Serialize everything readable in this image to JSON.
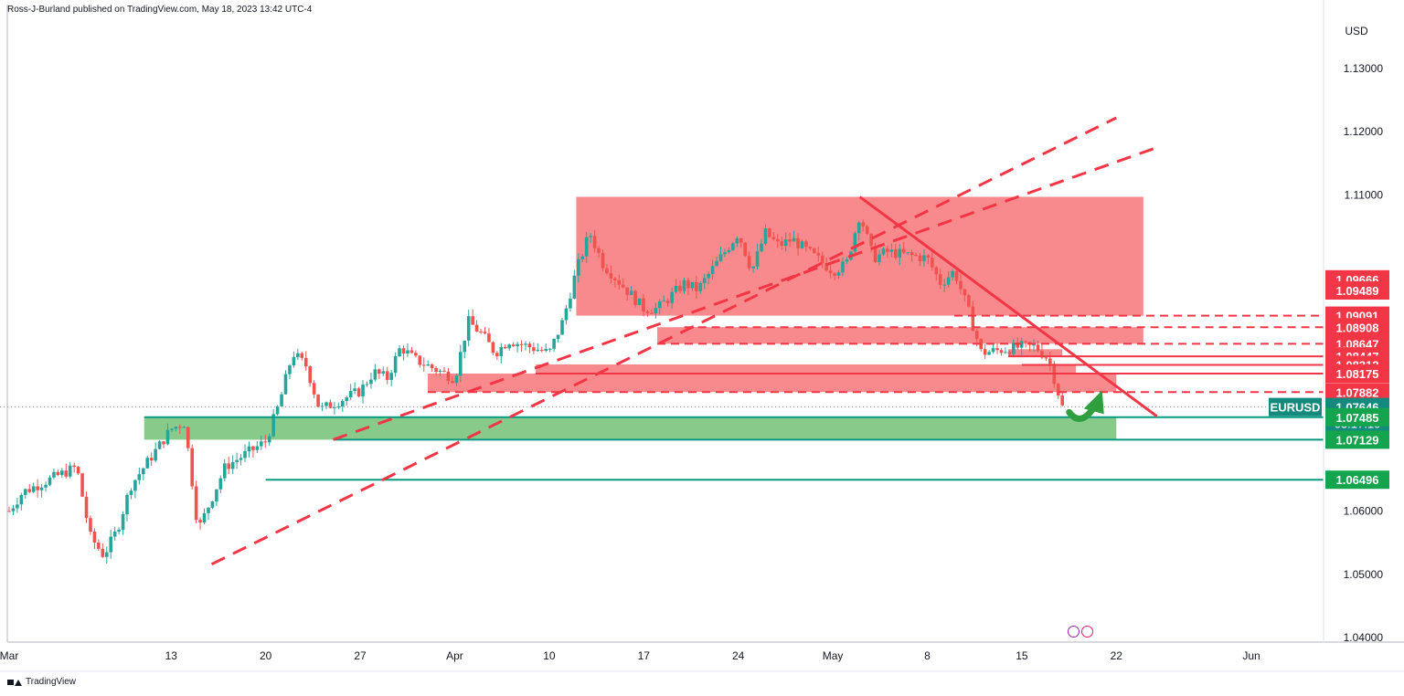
{
  "header": {
    "attribution": "Ross-J-Burland published on TradingView.com, May 18, 2023 13:42 UTC-4"
  },
  "footer": {
    "brand": "TradingView"
  },
  "colors": {
    "bull": "#26a69a",
    "bear": "#ef5350",
    "zone_red": "#f77c80",
    "zone_green": "#81c784",
    "line_red": "#f23645",
    "line_green": "#089981",
    "label_red": "#f23645",
    "label_green": "#14a44d",
    "label_current": "#138a7d"
  },
  "chart_data": {
    "type": "candlestick",
    "symbol": "EURUSD",
    "currency_label": "USD",
    "ylim": [
      1.04,
      1.1375
    ],
    "y_ticks": [
      "1.13000",
      "1.12000",
      "1.11000",
      "1.06000",
      "1.05000",
      "1.04000"
    ],
    "x_ticks": [
      {
        "label": "Mar",
        "date": "2023-03-01"
      },
      {
        "label": "13",
        "date": "2023-03-13"
      },
      {
        "label": "20",
        "date": "2023-03-20"
      },
      {
        "label": "27",
        "date": "2023-03-27"
      },
      {
        "label": "Apr",
        "date": "2023-04-03"
      },
      {
        "label": "10",
        "date": "2023-04-10"
      },
      {
        "label": "17",
        "date": "2023-04-17"
      },
      {
        "label": "24",
        "date": "2023-04-24"
      },
      {
        "label": "May",
        "date": "2023-05-01"
      },
      {
        "label": "8",
        "date": "2023-05-08"
      },
      {
        "label": "15",
        "date": "2023-05-15"
      },
      {
        "label": "22",
        "date": "2023-05-22"
      },
      {
        "label": "Jun",
        "date": "2023-06-01"
      }
    ],
    "price_path": [
      [
        "2023-03-01",
        1.06
      ],
      [
        "2023-03-02",
        1.063
      ],
      [
        "2023-03-03",
        1.064
      ],
      [
        "2023-03-06",
        1.067
      ],
      [
        "2023-03-07",
        1.056
      ],
      [
        "2023-03-08",
        1.053
      ],
      [
        "2023-03-09",
        1.057
      ],
      [
        "2023-03-10",
        1.064
      ],
      [
        "2023-03-13",
        1.073
      ],
      [
        "2023-03-14",
        1.074
      ],
      [
        "2023-03-15",
        1.057
      ],
      [
        "2023-03-16",
        1.062
      ],
      [
        "2023-03-17",
        1.067
      ],
      [
        "2023-03-20",
        1.071
      ],
      [
        "2023-03-21",
        1.077
      ],
      [
        "2023-03-22",
        1.085
      ],
      [
        "2023-03-23",
        1.083
      ],
      [
        "2023-03-24",
        1.076
      ],
      [
        "2023-03-27",
        1.079
      ],
      [
        "2023-03-28",
        1.082
      ],
      [
        "2023-03-29",
        1.081
      ],
      [
        "2023-03-30",
        1.086
      ],
      [
        "2023-03-31",
        1.084
      ],
      [
        "2023-04-03",
        1.081
      ],
      [
        "2023-04-04",
        1.09
      ],
      [
        "2023-04-05",
        1.088
      ],
      [
        "2023-04-06",
        1.085
      ],
      [
        "2023-04-07",
        1.087
      ],
      [
        "2023-04-10",
        1.085
      ],
      [
        "2023-04-11",
        1.09
      ],
      [
        "2023-04-12",
        1.098
      ],
      [
        "2023-04-13",
        1.104
      ],
      [
        "2023-04-14",
        1.099
      ],
      [
        "2023-04-17",
        1.092
      ],
      [
        "2023-04-18",
        1.092
      ],
      [
        "2023-04-19",
        1.094
      ],
      [
        "2023-04-20",
        1.096
      ],
      [
        "2023-04-21",
        1.095
      ],
      [
        "2023-04-24",
        1.104
      ],
      [
        "2023-04-25",
        1.098
      ],
      [
        "2023-04-26",
        1.104
      ],
      [
        "2023-04-27",
        1.102
      ],
      [
        "2023-04-28",
        1.103
      ],
      [
        "2023-05-01",
        1.098
      ],
      [
        "2023-05-02",
        1.099
      ],
      [
        "2023-05-03",
        1.107
      ],
      [
        "2023-05-04",
        1.1
      ],
      [
        "2023-05-05",
        1.101
      ],
      [
        "2023-05-08",
        1.1
      ],
      [
        "2023-05-09",
        1.096
      ],
      [
        "2023-05-10",
        1.098
      ],
      [
        "2023-05-11",
        1.092
      ],
      [
        "2023-05-12",
        1.085
      ],
      [
        "2023-05-15",
        1.086
      ],
      [
        "2023-05-16",
        1.086
      ],
      [
        "2023-05-17",
        1.084
      ],
      [
        "2023-05-18",
        1.07646
      ]
    ],
    "zones": [
      {
        "color": "red",
        "from": "2023-04-12",
        "to": "2023-05-24",
        "low": 1.09091,
        "high": 1.1097
      },
      {
        "color": "red",
        "from": "2023-04-18",
        "to": "2023-05-24",
        "low": 1.08647,
        "high": 1.08908
      },
      {
        "color": "red",
        "from": "2023-05-14",
        "to": "2023-05-18",
        "low": 1.08447,
        "high": 1.0856
      },
      {
        "color": "red",
        "from": "2023-04-09",
        "to": "2023-05-19",
        "low": 1.08175,
        "high": 1.0832
      },
      {
        "color": "red",
        "from": "2023-04-01",
        "to": "2023-05-22",
        "low": 1.07882,
        "high": 1.08175
      },
      {
        "color": "green",
        "from": "2023-03-11",
        "to": "2023-05-22",
        "low": 1.07129,
        "high": 1.07485
      }
    ],
    "levels": [
      {
        "price": 1.09666,
        "label": "1.09666",
        "style": "label",
        "color": "red"
      },
      {
        "price": 1.09489,
        "label": "1.09489",
        "style": "label",
        "color": "red"
      },
      {
        "price": 1.09091,
        "label": "1.09091",
        "style": "dashed",
        "color": "red",
        "from": "2023-05-10"
      },
      {
        "price": 1.08908,
        "label": "1.08908",
        "style": "dashed",
        "color": "red",
        "from": "2023-04-20"
      },
      {
        "price": 1.08647,
        "label": "1.08647",
        "style": "dashed",
        "color": "red",
        "from": "2023-04-18"
      },
      {
        "price": 1.08447,
        "label": "1.08447",
        "style": "solid",
        "color": "red",
        "from": "2023-05-14"
      },
      {
        "price": 1.08312,
        "label": "1.08312",
        "style": "solid",
        "color": "red",
        "from": "2023-05-15"
      },
      {
        "price": 1.08175,
        "label": "1.08175",
        "style": "solid",
        "color": "red",
        "from": "2023-04-09"
      },
      {
        "price": 1.07882,
        "label": "1.07882",
        "style": "dashed",
        "color": "red",
        "from": "2023-04-01"
      },
      {
        "price": 1.07646,
        "label": "1.07646",
        "style": "dotted",
        "color": "grey",
        "from": "2023-03-01",
        "current": true,
        "countdown": "03:17:10"
      },
      {
        "price": 1.07485,
        "label": "1.07485",
        "style": "solid",
        "color": "green",
        "from": "2023-03-11"
      },
      {
        "price": 1.07129,
        "label": "1.07129",
        "style": "solid",
        "color": "green",
        "from": "2023-03-25"
      },
      {
        "price": 1.06496,
        "label": "1.06496",
        "style": "solid",
        "color": "green",
        "from": "2023-03-20"
      }
    ],
    "trendlines": [
      {
        "style": "dashed",
        "from": [
          "2023-03-16",
          1.0516
        ],
        "to": [
          "2023-05-22",
          1.1222
        ]
      },
      {
        "style": "dashed",
        "from": [
          "2023-03-25",
          1.0713
        ],
        "to": [
          "2023-05-25",
          1.1175
        ]
      },
      {
        "style": "solid",
        "from": [
          "2023-05-03",
          1.1097
        ],
        "to": [
          "2023-05-25",
          1.075
        ]
      }
    ],
    "annotation": {
      "type": "curved-arrow",
      "color": "green",
      "at": "2023-05-20",
      "price": 1.0765
    }
  }
}
